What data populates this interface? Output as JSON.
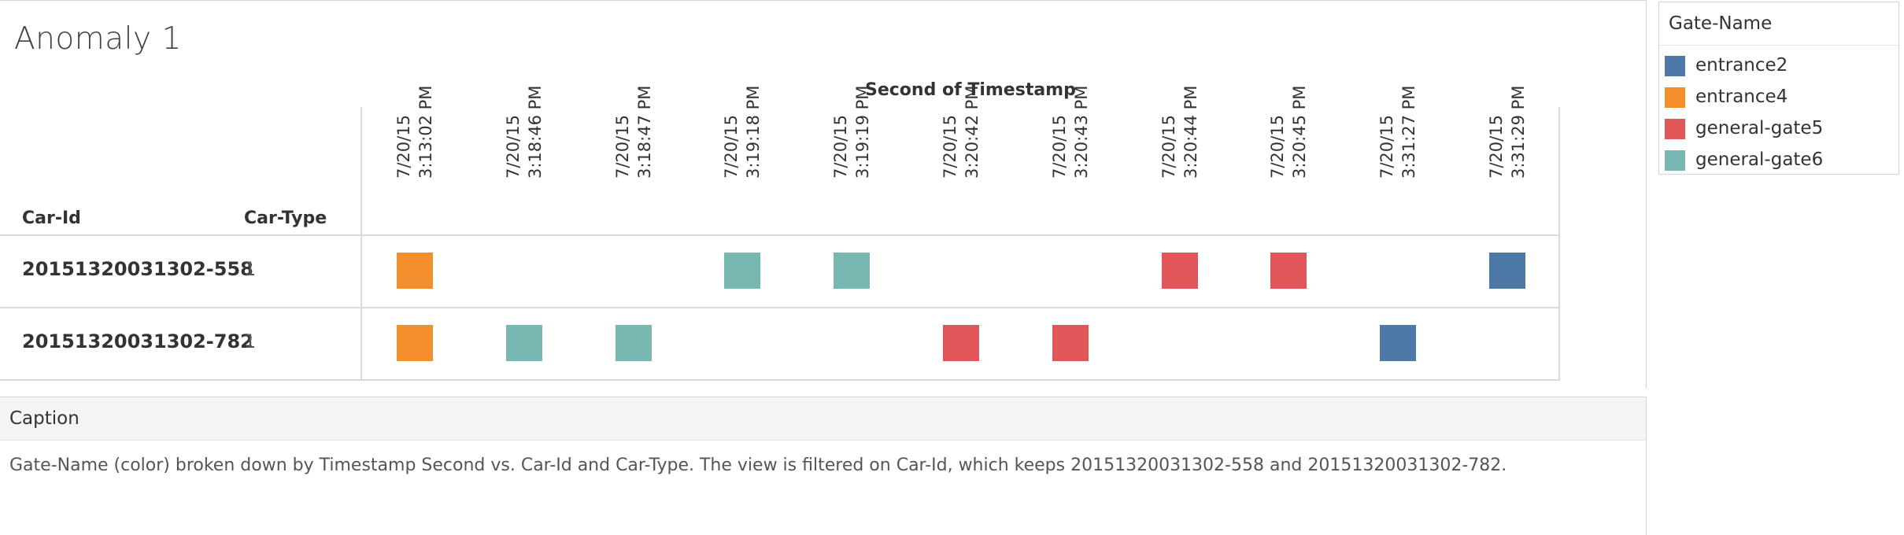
{
  "title": "Anomaly 1",
  "legend": {
    "title": "Gate-Name",
    "items": [
      {
        "label": "entrance2",
        "color": "#4e79a7"
      },
      {
        "label": "entrance4",
        "color": "#f28e2b"
      },
      {
        "label": "general-gate5",
        "color": "#e15759"
      },
      {
        "label": "general-gate6",
        "color": "#76b7b2"
      }
    ]
  },
  "caption": {
    "title": "Caption",
    "text": "Gate-Name (color) broken down by Timestamp Second vs. Car-Id and Car-Type.  The view is filtered on Car-Id, which keeps 20151320031302-558 and 20151320031302-782."
  },
  "chart_data": {
    "type": "heatmap",
    "x_axis_title": "Second of Timestamp",
    "row_headers": [
      "Car-Id",
      "Car-Type"
    ],
    "x": [
      "7/20/15\n3:13:02 PM",
      "7/20/15\n3:18:46 PM",
      "7/20/15\n3:18:47 PM",
      "7/20/15\n3:19:18 PM",
      "7/20/15\n3:19:19 PM",
      "7/20/15\n3:20:42 PM",
      "7/20/15\n3:20:43 PM",
      "7/20/15\n3:20:44 PM",
      "7/20/15\n3:20:45 PM",
      "7/20/15\n3:31:27 PM",
      "7/20/15\n3:31:29 PM"
    ],
    "rows": [
      {
        "car_id": "20151320031302-558",
        "car_type": "1",
        "marks": [
          {
            "x": "7/20/15\n3:13:02 PM",
            "gate": "entrance4"
          },
          {
            "x": "7/20/15\n3:19:18 PM",
            "gate": "general-gate6"
          },
          {
            "x": "7/20/15\n3:19:19 PM",
            "gate": "general-gate6"
          },
          {
            "x": "7/20/15\n3:20:44 PM",
            "gate": "general-gate5"
          },
          {
            "x": "7/20/15\n3:20:45 PM",
            "gate": "general-gate5"
          },
          {
            "x": "7/20/15\n3:31:29 PM",
            "gate": "entrance2"
          }
        ]
      },
      {
        "car_id": "20151320031302-782",
        "car_type": "1",
        "marks": [
          {
            "x": "7/20/15\n3:13:02 PM",
            "gate": "entrance4"
          },
          {
            "x": "7/20/15\n3:18:46 PM",
            "gate": "general-gate6"
          },
          {
            "x": "7/20/15\n3:18:47 PM",
            "gate": "general-gate6"
          },
          {
            "x": "7/20/15\n3:20:42 PM",
            "gate": "general-gate5"
          },
          {
            "x": "7/20/15\n3:20:43 PM",
            "gate": "general-gate5"
          },
          {
            "x": "7/20/15\n3:31:27 PM",
            "gate": "entrance2"
          }
        ]
      }
    ]
  }
}
